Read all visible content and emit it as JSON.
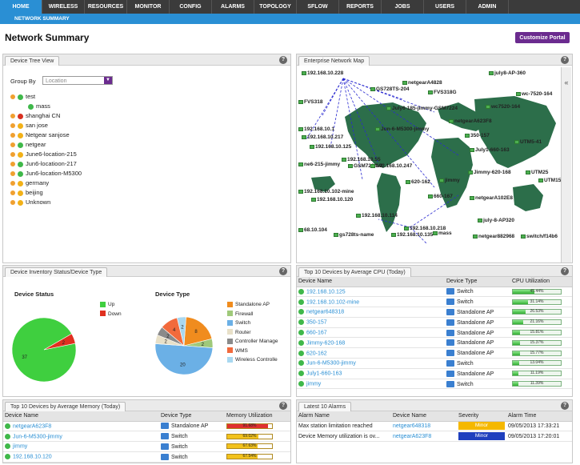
{
  "nav": [
    "HOME",
    "WIRELESS",
    "RESOURCES",
    "MONITOR",
    "CONFIG",
    "ALARMS",
    "TOPOLOGY",
    "SFLOW",
    "REPORTS",
    "JOBS",
    "USERS",
    "ADMIN"
  ],
  "subnav": "NETWORK SUMMARY",
  "page_title": "Network Summary",
  "portal_button": "Customize Portal",
  "tree_panel": {
    "title": "Device Tree View",
    "group_by_label": "Group By",
    "group_by_value": "Location",
    "nodes": [
      {
        "label": "test",
        "dot": "green",
        "indent": 0
      },
      {
        "label": "mass",
        "dot": "green",
        "indent": 1
      },
      {
        "label": "shanghai CN",
        "dot": "red",
        "indent": 0
      },
      {
        "label": "san jose",
        "dot": "yellow",
        "indent": 0
      },
      {
        "label": "Netgear sanjose",
        "dot": "yellow",
        "indent": 0
      },
      {
        "label": "netgear",
        "dot": "green",
        "indent": 0
      },
      {
        "label": "June6-location-215",
        "dot": "yellow",
        "indent": 0
      },
      {
        "label": "Jun6-locatioon-217",
        "dot": "green",
        "indent": 0
      },
      {
        "label": "Jun6-location-M5300",
        "dot": "green",
        "indent": 0
      },
      {
        "label": "germany",
        "dot": "yellow",
        "indent": 0
      },
      {
        "label": "beijing",
        "dot": "yellow",
        "indent": 0
      },
      {
        "label": "Unknown",
        "dot": "yellow",
        "indent": 0
      }
    ]
  },
  "map_panel": {
    "title": "Enterprise Network Map",
    "labels": [
      "192.168.10.228",
      "netgearA4828",
      "july8-AP-360",
      "GS728TS-204",
      "FVS318G",
      "wc-7520-164",
      "FVS318",
      "wc7520-164",
      "July6-185-jimmy-GSM7224",
      "netgearA623F8",
      "192.168.10.1",
      "Jun-6-M5300-jimmy",
      "350-157",
      "192.168.10.217",
      "192.168.10.125",
      "UTM5-41",
      "ne6-215-jimmy",
      "192.168.10.55",
      "GSM7224v2",
      "192.168.10.247",
      "July1-660-163",
      "Jimmy-620-168",
      "UTM25",
      "UTM150",
      "620-162",
      "jimmy",
      "192.168.10.102-mine",
      "192.168.10.120",
      "660-167",
      "netgearA102E8",
      "192.168.10.114",
      "july-8-AP320",
      "68.10.104",
      "gs728ts-name",
      "192.168.10.135",
      "192.168.10.218",
      "mass",
      "netgear882968",
      "switch/f14b6"
    ]
  },
  "inventory_panel": {
    "title": "Device Inventory Status/Device Type",
    "status": {
      "title": "Device Status",
      "legend": [
        {
          "label": "Up",
          "value": 37,
          "color": "#3fcf3f"
        },
        {
          "label": "Down",
          "value": 2,
          "color": "#e03020"
        }
      ]
    },
    "type": {
      "title": "Device Type",
      "legend": [
        {
          "label": "Standalone AP",
          "value": 8,
          "color": "#f08c1e"
        },
        {
          "label": "Firewall",
          "value": 2,
          "color": "#9fc97a"
        },
        {
          "label": "Switch",
          "value": 20,
          "color": "#6bb0e6"
        },
        {
          "label": "Router",
          "value": 2,
          "color": "#e8e0c8"
        },
        {
          "label": "Controller Manage",
          "value": 2,
          "color": "#8a8a8a"
        },
        {
          "label": "WMS",
          "value": 4,
          "color": "#f26a3c"
        },
        {
          "label": "Wireless Controlle",
          "value": 2,
          "color": "#a8d8f0"
        }
      ]
    }
  },
  "cpu_panel": {
    "title": "Top 10 Devices by Average CPU (Today)",
    "headers": [
      "Device Name",
      "Device Type",
      "CPU Utilization"
    ],
    "rows": [
      {
        "name": "192.168.10.125",
        "type": "Switch",
        "value": "45.44%",
        "pct": 45.44
      },
      {
        "name": "192.168.10.102-mine",
        "type": "Switch",
        "value": "31.14%",
        "pct": 31.14
      },
      {
        "name": "netgear648318",
        "type": "Standalone AP",
        "value": "26.53%",
        "pct": 26.53
      },
      {
        "name": "350-157",
        "type": "Standalone AP",
        "value": "21.16%",
        "pct": 21.16
      },
      {
        "name": "660-167",
        "type": "Standalone AP",
        "value": "15.81%",
        "pct": 15.81
      },
      {
        "name": "Jimmy-620-168",
        "type": "Standalone AP",
        "value": "15.37%",
        "pct": 15.37
      },
      {
        "name": "620-162",
        "type": "Standalone AP",
        "value": "15.77%",
        "pct": 15.77
      },
      {
        "name": "Jun-6-M5300-jimmy",
        "type": "Switch",
        "value": "13.04%",
        "pct": 13.04
      },
      {
        "name": "July1-660-163",
        "type": "Standalone AP",
        "value": "11.19%",
        "pct": 11.19
      },
      {
        "name": "jimmy",
        "type": "Switch",
        "value": "11.39%",
        "pct": 11.39
      }
    ]
  },
  "memory_panel": {
    "title": "Top 10 Devices by Average Memory (Today)",
    "headers": [
      "Device Name",
      "Device Type",
      "Memory Utilization"
    ],
    "rows": [
      {
        "name": "netgearA623F8",
        "type": "Standalone AP",
        "value": "91.68%",
        "pct": 91.68,
        "color": "#e03030"
      },
      {
        "name": "Jun-6-M5300-jimmy",
        "type": "Switch",
        "value": "69.02%",
        "pct": 69.02,
        "color": "#f2c21c"
      },
      {
        "name": "jimmy",
        "type": "Switch",
        "value": "67.63%",
        "pct": 67.63,
        "color": "#f2c21c"
      },
      {
        "name": "192.168.10.120",
        "type": "Switch",
        "value": "67.54%",
        "pct": 67.54,
        "color": "#f2c21c"
      }
    ]
  },
  "alarms_panel": {
    "title": "Latest 10 Alarms",
    "headers": [
      "Alarm Name",
      "Device Name",
      "Severity",
      "Alarm Time"
    ],
    "rows": [
      {
        "name": "Max station limitation reached",
        "device": "netgear648318",
        "severity": "Minor",
        "color": "#f5b800",
        "time": "09/05/2013 17:33:21"
      },
      {
        "name": "Device Memory utilization is ov...",
        "device": "netgearA623F8",
        "severity": "Minor",
        "color": "#1e3fbe",
        "time": "09/05/2013 17:20:01"
      }
    ]
  }
}
